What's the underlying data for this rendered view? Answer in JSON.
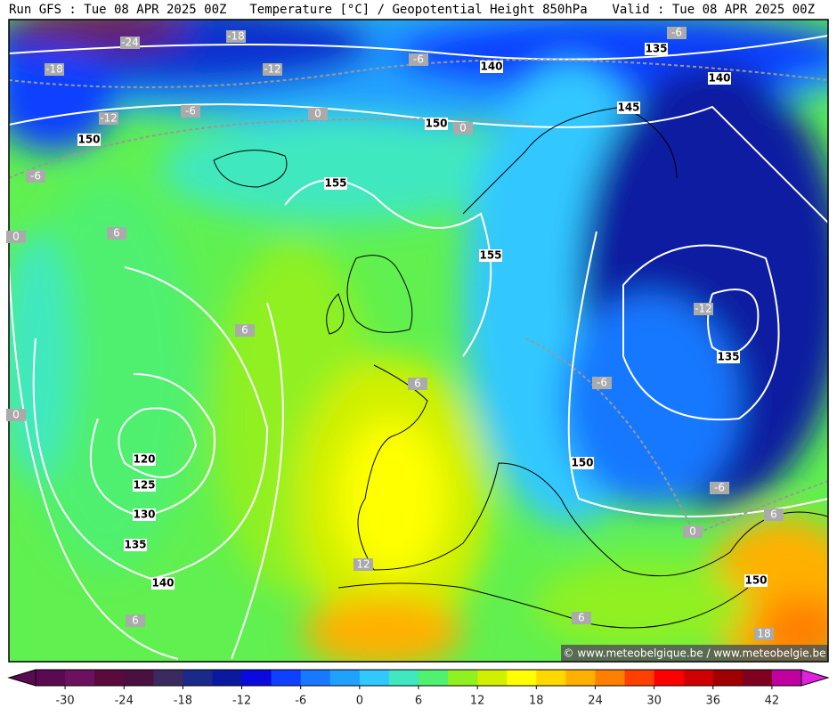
{
  "header": {
    "run": "Run GFS : Tue 08 APR 2025 00Z",
    "title": "Temperature [°C] / Geopotential Height 850hPa",
    "valid": "Valid : Tue 08 APR 2025 00Z"
  },
  "watermark": "© www.meteobelgique.be / www.meteobelgie.be",
  "height_labels": [
    135,
    140,
    140,
    145,
    150,
    150,
    155,
    155,
    135,
    150,
    120,
    125,
    130,
    135,
    140,
    150
  ],
  "temperature_labels": [
    -24,
    -18,
    -6,
    -18,
    -12,
    -6,
    -12,
    -6,
    0,
    0,
    -6,
    0,
    6,
    6,
    6,
    -6,
    0,
    -12,
    -6,
    6,
    0,
    12,
    6,
    6,
    18
  ],
  "colorbar": {
    "ticks": [
      -30,
      -24,
      -18,
      -12,
      -6,
      0,
      6,
      12,
      18,
      24,
      30,
      36,
      42
    ],
    "colors": [
      "#5a0a50",
      "#6e1060",
      "#5a0a3c",
      "#4a1040",
      "#3a2a60",
      "#1a2a8a",
      "#0a1aa0",
      "#0a0ae0",
      "#1040ff",
      "#1878ff",
      "#20a0ff",
      "#30c8ff",
      "#40e8c0",
      "#50f070",
      "#90f020",
      "#d0f000",
      "#ffff00",
      "#ffd800",
      "#ffb000",
      "#ff8000",
      "#ff4000",
      "#ff0000",
      "#d00000",
      "#a00000",
      "#800020",
      "#c000a0"
    ]
  }
}
